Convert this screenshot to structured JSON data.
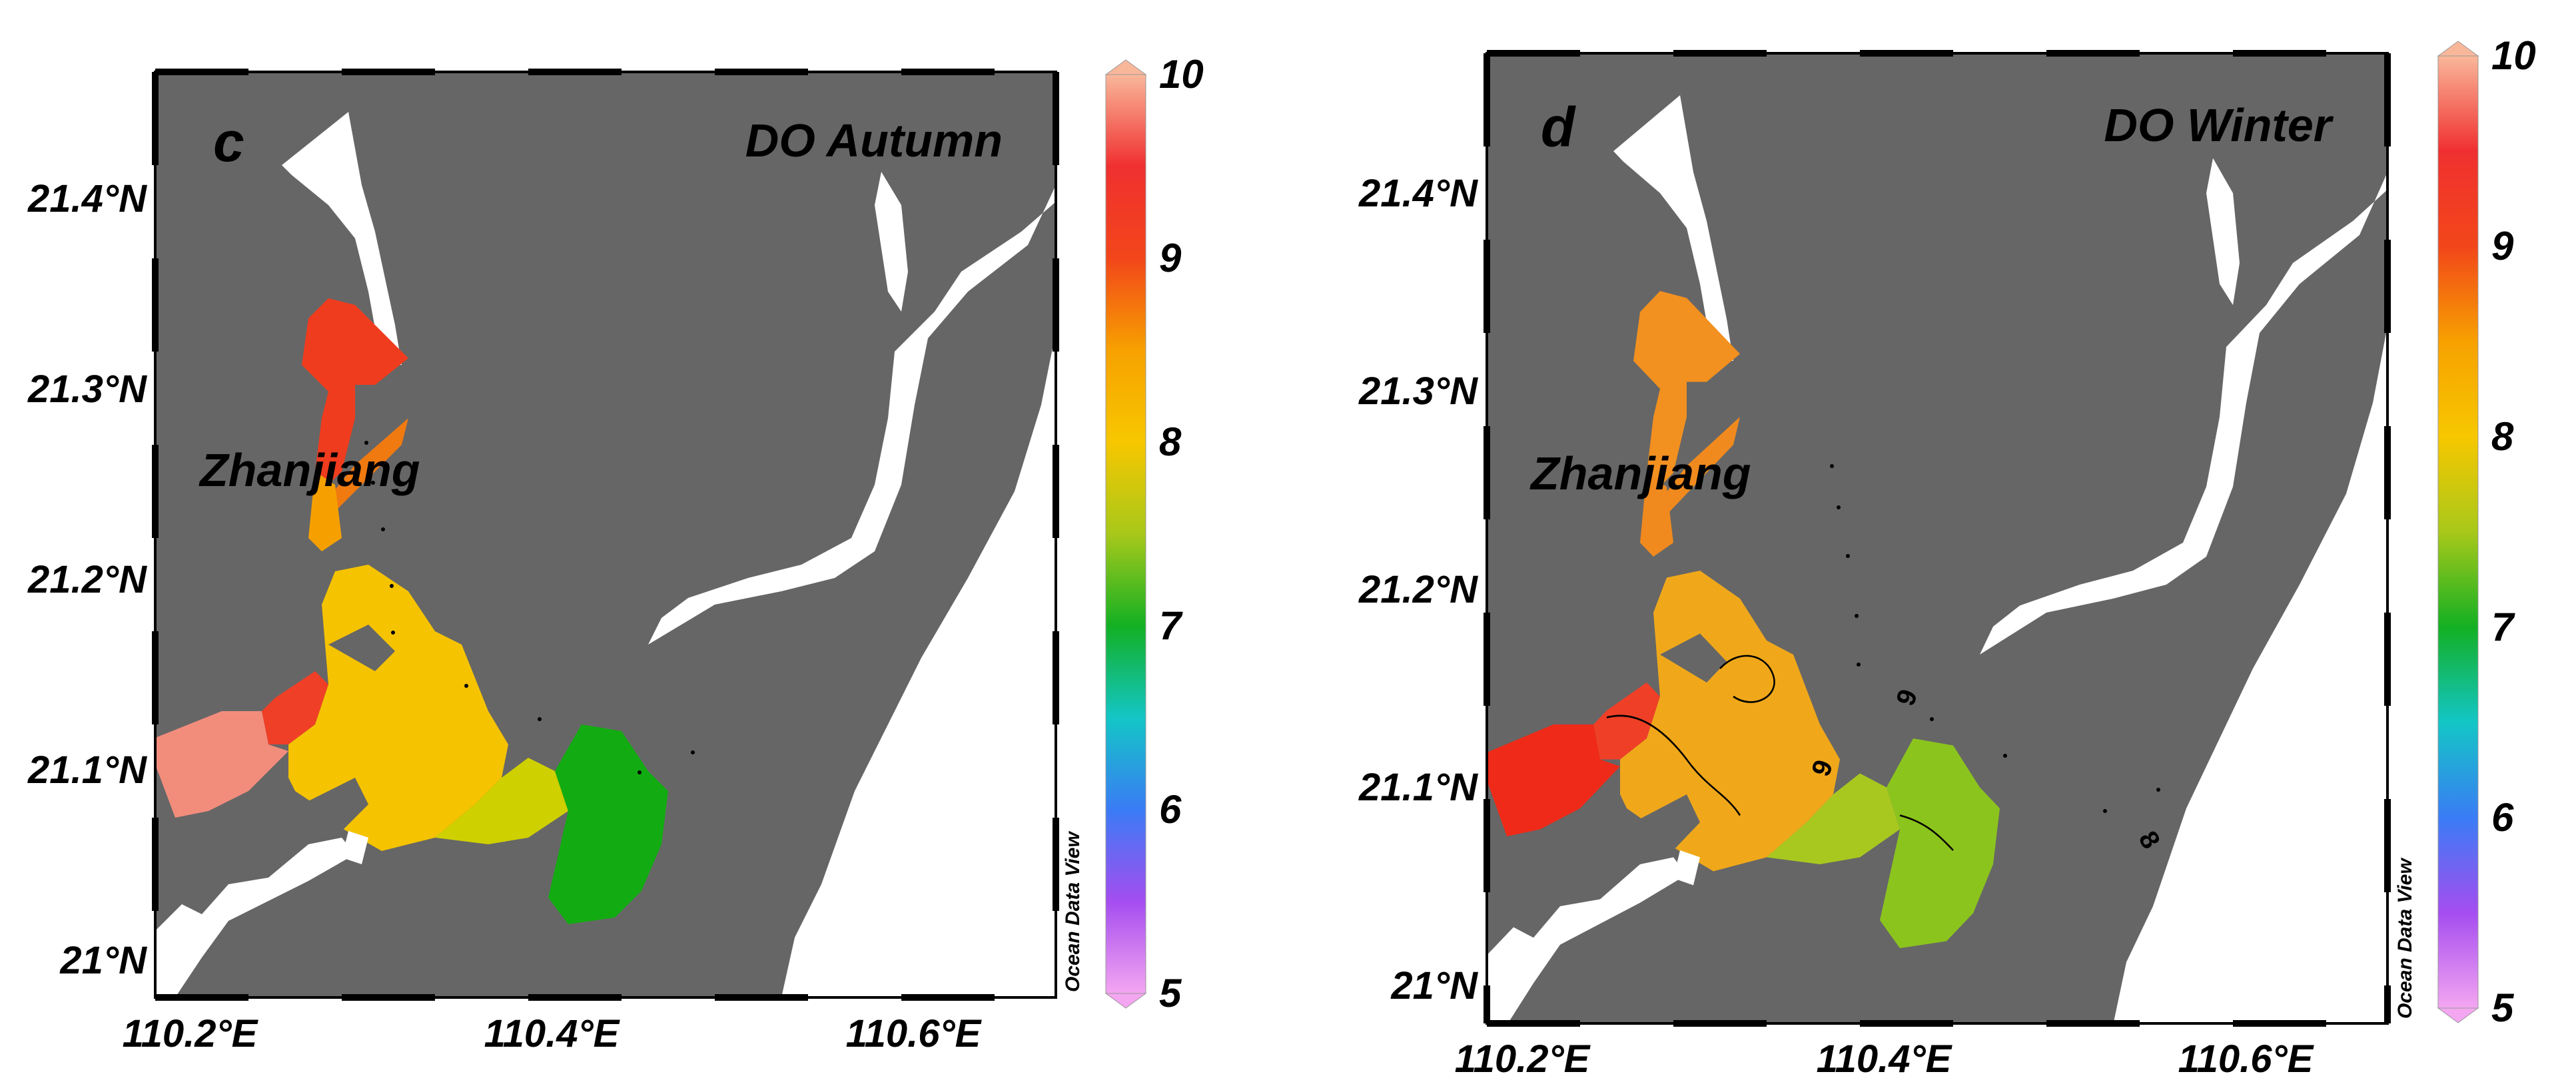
{
  "panels": [
    {
      "letter": "c",
      "title": "DO Autumn",
      "place_label": "Zhanjiang",
      "lat_ticks": [
        "21.4°N",
        "21.3°N",
        "21.2°N",
        "21.1°N",
        "21°N"
      ],
      "lon_ticks": [
        "110.2°E",
        "110.4°E",
        "110.6°E"
      ],
      "watermark": "Ocean Data View",
      "colorbar_ticks": [
        "10",
        "9",
        "8",
        "7",
        "6",
        "5"
      ],
      "contour_labels": [],
      "data_colors": {
        "upper_channel": "#f03c1e",
        "mid_channel": "#f5a000",
        "west_bay": "#f28d7c",
        "west_junction": "#ef3f27",
        "central_bay": "#f5c300",
        "east_bay": "#cfd000",
        "offshore": "#12ac12",
        "side_channel": "#f07a10"
      }
    },
    {
      "letter": "d",
      "title": "DO Winter",
      "place_label": "Zhanjiang",
      "lat_ticks": [
        "21.4°N",
        "21.3°N",
        "21.2°N",
        "21.1°N",
        "21°N"
      ],
      "lon_ticks": [
        "110.2°E",
        "110.4°E",
        "110.6°E"
      ],
      "watermark": "Ocean Data View",
      "colorbar_ticks": [
        "10",
        "9",
        "8",
        "7",
        "6",
        "5"
      ],
      "contour_labels": [
        "9",
        "9",
        "8"
      ],
      "data_colors": {
        "upper_channel": "#f29020",
        "mid_channel": "#f08a1e",
        "west_bay": "#ef2a18",
        "west_junction": "#ef3f27",
        "central_bay": "#f0a81a",
        "east_bay": "#a8c820",
        "offshore": "#8cc41e",
        "side_channel": "#f08a1e"
      }
    }
  ],
  "colorbar": {
    "min": 5,
    "max": 10,
    "colors": [
      "#f4a6f1",
      "#a54df0",
      "#3a7cf5",
      "#13c6c6",
      "#13b023",
      "#a8c81a",
      "#f7c700",
      "#f7a100",
      "#f2461a",
      "#f03030",
      "#f9b79a"
    ]
  }
}
